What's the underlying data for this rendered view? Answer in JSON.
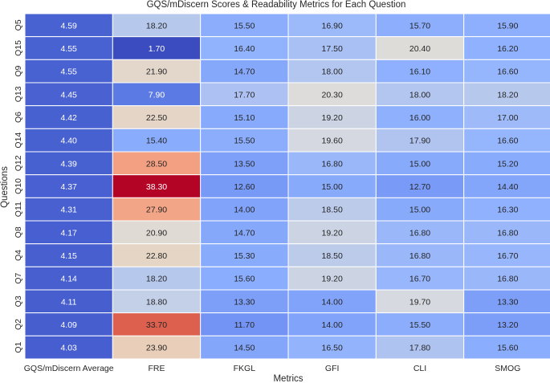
{
  "chart_data": {
    "type": "heatmap",
    "title": "GQS/mDiscern Scores & Readability Metrics for Each Question",
    "xlabel": "Metrics",
    "ylabel": "Questions",
    "columns": [
      "GQS/mDiscern Average",
      "FRE",
      "FKGL",
      "GFI",
      "CLI",
      "SMOG"
    ],
    "rows": [
      "Q5",
      "Q15",
      "Q9",
      "Q13",
      "Q6",
      "Q14",
      "Q12",
      "Q10",
      "Q11",
      "Q8",
      "Q4",
      "Q7",
      "Q3",
      "Q2",
      "Q1"
    ],
    "values": [
      [
        4.59,
        18.2,
        15.5,
        16.9,
        15.7,
        15.9
      ],
      [
        4.55,
        1.7,
        16.4,
        17.5,
        20.4,
        16.2
      ],
      [
        4.55,
        21.9,
        14.7,
        18.0,
        16.1,
        16.6
      ],
      [
        4.45,
        7.9,
        17.7,
        20.3,
        18.0,
        18.2
      ],
      [
        4.42,
        22.5,
        15.1,
        19.2,
        16.0,
        17.0
      ],
      [
        4.4,
        15.4,
        15.5,
        19.6,
        17.9,
        16.6
      ],
      [
        4.39,
        28.5,
        13.5,
        16.8,
        15.0,
        15.2
      ],
      [
        4.37,
        38.3,
        12.6,
        15.0,
        12.7,
        14.4
      ],
      [
        4.31,
        27.9,
        14.0,
        18.5,
        15.0,
        16.3
      ],
      [
        4.17,
        20.9,
        14.7,
        19.2,
        16.8,
        16.8
      ],
      [
        4.15,
        22.8,
        15.3,
        18.5,
        16.8,
        16.7
      ],
      [
        4.14,
        18.2,
        15.6,
        19.2,
        16.7,
        16.8
      ],
      [
        4.11,
        18.8,
        13.3,
        14.0,
        19.7,
        13.3
      ],
      [
        4.09,
        33.7,
        11.7,
        14.0,
        15.5,
        13.2
      ],
      [
        4.03,
        23.9,
        14.5,
        16.5,
        17.8,
        15.6
      ]
    ],
    "labels": [
      [
        "4.59",
        "18.20",
        "15.50",
        "16.90",
        "15.70",
        "15.90"
      ],
      [
        "4.55",
        "1.70",
        "16.40",
        "17.50",
        "20.40",
        "16.20"
      ],
      [
        "4.55",
        "21.90",
        "14.70",
        "18.00",
        "16.10",
        "16.60"
      ],
      [
        "4.45",
        "7.90",
        "17.70",
        "20.30",
        "18.00",
        "18.20"
      ],
      [
        "4.42",
        "22.50",
        "15.10",
        "19.20",
        "16.00",
        "17.00"
      ],
      [
        "4.40",
        "15.40",
        "15.50",
        "19.60",
        "17.90",
        "16.60"
      ],
      [
        "4.39",
        "28.50",
        "13.50",
        "16.80",
        "15.00",
        "15.20"
      ],
      [
        "4.37",
        "38.30",
        "12.60",
        "15.00",
        "12.70",
        "14.40"
      ],
      [
        "4.31",
        "27.90",
        "14.00",
        "18.50",
        "15.00",
        "16.30"
      ],
      [
        "4.17",
        "20.90",
        "14.70",
        "19.20",
        "16.80",
        "16.80"
      ],
      [
        "4.15",
        "22.80",
        "15.30",
        "18.50",
        "16.80",
        "16.70"
      ],
      [
        "4.14",
        "18.20",
        "15.60",
        "19.20",
        "16.70",
        "16.80"
      ],
      [
        "4.11",
        "18.80",
        "13.30",
        "14.00",
        "19.70",
        "13.30"
      ],
      [
        "4.09",
        "33.70",
        "11.70",
        "14.00",
        "15.50",
        "13.20"
      ],
      [
        "4.03",
        "23.90",
        "14.50",
        "16.50",
        "17.80",
        "15.60"
      ]
    ],
    "colormap": "coolwarm",
    "vmin": 1.7,
    "vmax": 38.3,
    "grid": false,
    "legend": "none"
  }
}
